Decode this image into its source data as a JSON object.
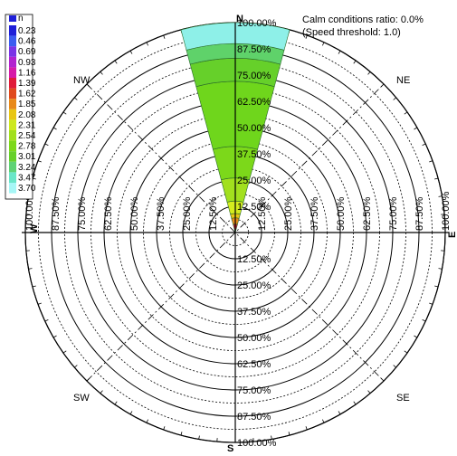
{
  "chart_data": {
    "type": "wind-rose",
    "direction": "N",
    "total_percent": 100.0,
    "calm_label": "Calm conditions ratio: 0.0%",
    "threshold_label": "(Speed threshold: 1.0)",
    "radial_ticks": [
      "12.50%",
      "25.00%",
      "37.50%",
      "50.00%",
      "62.50%",
      "75.00%",
      "87.50%",
      "100.00%"
    ],
    "radial_values": [
      12.5,
      25,
      37.5,
      50,
      62.5,
      75,
      87.5,
      100
    ],
    "directions": {
      "n": "N",
      "s": "S",
      "e": "E",
      "w": "W",
      "ne": "NE",
      "nw": "NW",
      "se": "SE",
      "sw": "SW"
    },
    "legend": {
      "title": "n",
      "levels": [
        "0.23",
        "0.46",
        "0.69",
        "0.93",
        "1.16",
        "1.39",
        "1.62",
        "1.85",
        "2.08",
        "2.31",
        "2.54",
        "2.78",
        "3.01",
        "3.24",
        "3.47",
        "3.70"
      ],
      "colors": [
        "#1f1fd8",
        "#3c5cf0",
        "#7a34e6",
        "#b222cf",
        "#d61aa8",
        "#e01b3a",
        "#e04a1e",
        "#e8891a",
        "#e8c614",
        "#cde81e",
        "#a2e01e",
        "#7cd81a",
        "#66d02a",
        "#5fd275",
        "#6ae6c8",
        "#a6f6f6"
      ]
    },
    "bands": [
      {
        "to": 4.0,
        "color": "#e01b3a"
      },
      {
        "to": 7.0,
        "color": "#e8891a"
      },
      {
        "to": 9.0,
        "color": "#e8c614"
      },
      {
        "to": 15.0,
        "color": "#d4ec1e"
      },
      {
        "to": 26.0,
        "color": "#a2e01e"
      },
      {
        "to": 41.0,
        "color": "#7cd81a"
      },
      {
        "to": 72.0,
        "color": "#6fd61c"
      },
      {
        "to": 83.0,
        "color": "#66d02a"
      },
      {
        "to": 90.0,
        "color": "#5fd26a"
      },
      {
        "to": 100.0,
        "color": "#8ef0e8"
      }
    ]
  }
}
